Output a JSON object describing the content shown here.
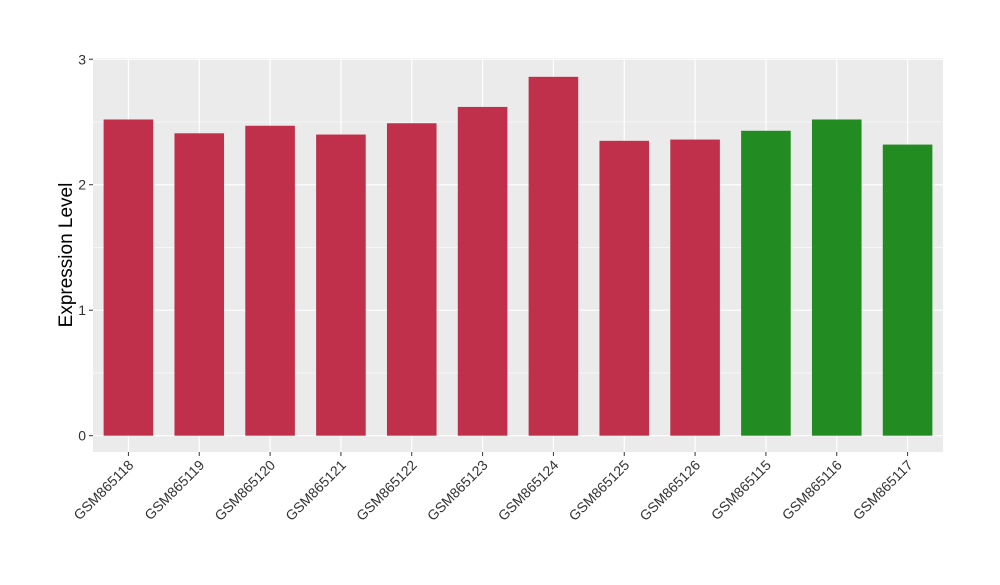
{
  "chart_data": {
    "type": "bar",
    "ylabel": "Expression Level",
    "xlabel": "",
    "ylim": [
      -0.13,
      3.01
    ],
    "yticks": [
      0,
      1,
      2,
      3
    ],
    "grid": true,
    "legend": "none",
    "categories": [
      "GSM865118",
      "GSM865119",
      "GSM865120",
      "GSM865121",
      "GSM865122",
      "GSM865123",
      "GSM865124",
      "GSM865125",
      "GSM865126",
      "GSM865115",
      "GSM865116",
      "GSM865117"
    ],
    "values": [
      2.52,
      2.41,
      2.47,
      2.4,
      2.49,
      2.62,
      2.86,
      2.35,
      2.36,
      2.43,
      2.52,
      2.32
    ],
    "bar_colors": [
      "#C0304A",
      "#C0304A",
      "#C0304A",
      "#C0304A",
      "#C0304A",
      "#C0304A",
      "#C0304A",
      "#C0304A",
      "#C0304A",
      "#228B22",
      "#228B22",
      "#228B22"
    ],
    "panel_background": "#EBEBEB",
    "gridline_color": "#FFFFFF"
  }
}
